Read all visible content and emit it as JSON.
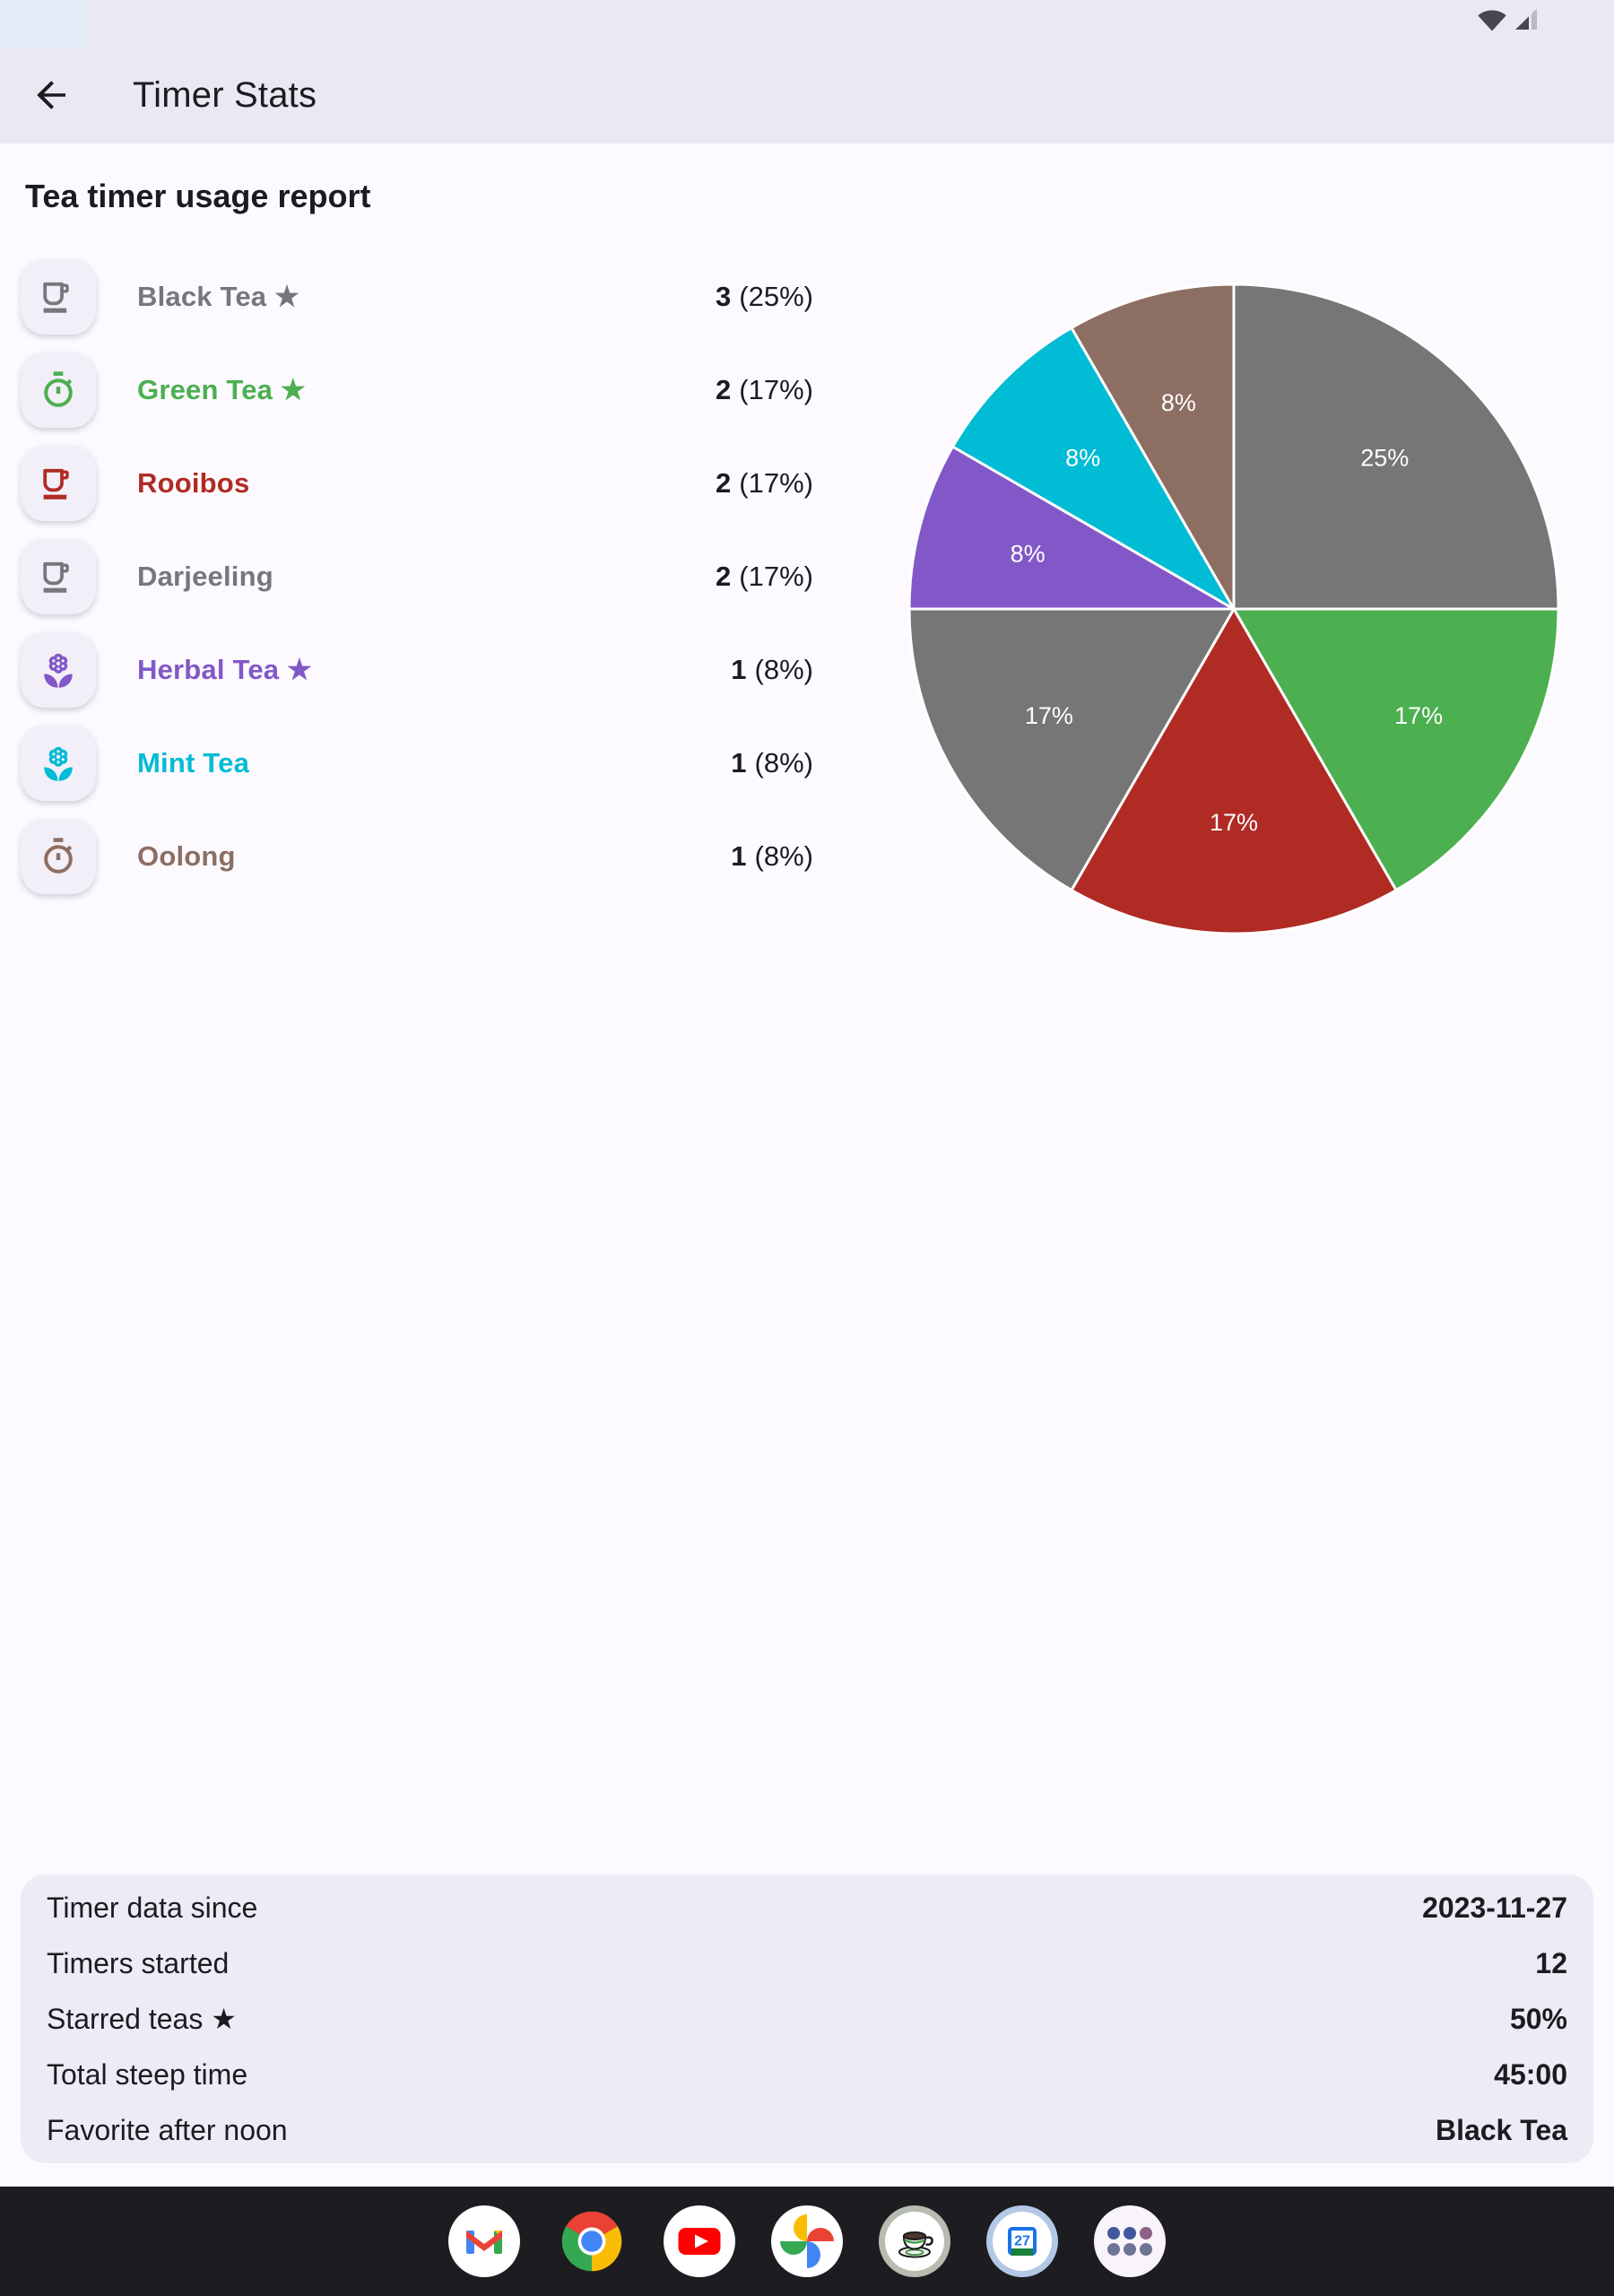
{
  "status_bar": {
    "icons": [
      "wifi",
      "cellular-signal"
    ]
  },
  "header": {
    "title": "Timer Stats",
    "back_icon": "arrow-back"
  },
  "report": {
    "section_title": "Tea timer usage report",
    "teas": [
      {
        "name": "Black Tea ★",
        "count": "3",
        "pct_label": "(25%)",
        "color": "#79757c",
        "icon": "teacup"
      },
      {
        "name": "Green Tea ★",
        "count": "2",
        "pct_label": "(17%)",
        "color": "#4caf50",
        "icon": "timer"
      },
      {
        "name": "Rooibos",
        "count": "2",
        "pct_label": "(17%)",
        "color": "#b02b24",
        "icon": "teacup"
      },
      {
        "name": "Darjeeling",
        "count": "2",
        "pct_label": "(17%)",
        "color": "#79757c",
        "icon": "teacup"
      },
      {
        "name": "Herbal Tea ★",
        "count": "1",
        "pct_label": "(8%)",
        "color": "#8258c8",
        "icon": "flower"
      },
      {
        "name": "Mint Tea",
        "count": "1",
        "pct_label": "(8%)",
        "color": "#00bcd4",
        "icon": "flower"
      },
      {
        "name": "Oolong",
        "count": "1",
        "pct_label": "(8%)",
        "color": "#8d6e63",
        "icon": "timer"
      }
    ]
  },
  "chart_data": {
    "type": "pie",
    "title": "Tea timer usage report",
    "start_angle_deg": 0,
    "direction": "clockwise",
    "label_color": "#ffffff",
    "slices": [
      {
        "label": "Black Tea",
        "value": 3,
        "pct_label": "25%",
        "color": "#767676"
      },
      {
        "label": "Green Tea",
        "value": 2,
        "pct_label": "17%",
        "color": "#4caf50"
      },
      {
        "label": "Rooibos",
        "value": 2,
        "pct_label": "17%",
        "color": "#b02b24"
      },
      {
        "label": "Darjeeling",
        "value": 2,
        "pct_label": "17%",
        "color": "#767676"
      },
      {
        "label": "Herbal Tea",
        "value": 1,
        "pct_label": "8%",
        "color": "#8258c8"
      },
      {
        "label": "Mint Tea",
        "value": 1,
        "pct_label": "8%",
        "color": "#00bcd4"
      },
      {
        "label": "Oolong",
        "value": 1,
        "pct_label": "8%",
        "color": "#8d6e63"
      }
    ]
  },
  "summary": {
    "rows": [
      {
        "label": "Timer data since",
        "value": "2023-11-27"
      },
      {
        "label": "Timers started",
        "value": "12"
      },
      {
        "label": "Starred teas ★",
        "value": "50%"
      },
      {
        "label": "Total steep time",
        "value": "45:00"
      },
      {
        "label": "Favorite after noon",
        "value": "Black Tea"
      }
    ]
  },
  "dock": {
    "apps": [
      {
        "name": "gmail"
      },
      {
        "name": "chrome"
      },
      {
        "name": "youtube"
      },
      {
        "name": "photos"
      },
      {
        "name": "tea-timer"
      },
      {
        "name": "calendar",
        "day": "27"
      },
      {
        "name": "app-drawer"
      }
    ]
  }
}
